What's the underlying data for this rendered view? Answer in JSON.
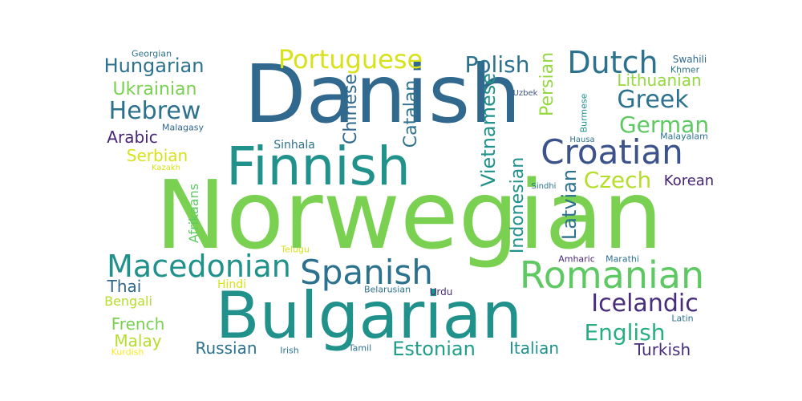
{
  "words": [
    {
      "text": "Norwegian",
      "color": "#7ad151",
      "rotated": false
    },
    {
      "text": "Danish",
      "color": "#31688e",
      "rotated": false
    },
    {
      "text": "Bulgarian",
      "color": "#21918c",
      "rotated": false
    },
    {
      "text": "Finnish",
      "color": "#21918c",
      "rotated": false
    },
    {
      "text": "Romanian",
      "color": "#5ec962",
      "rotated": false
    },
    {
      "text": "Croatian",
      "color": "#3b528b",
      "rotated": false
    },
    {
      "text": "Spanish",
      "color": "#2c728e",
      "rotated": false
    },
    {
      "text": "Macedonian",
      "color": "#21918c",
      "rotated": false
    },
    {
      "text": "Dutch",
      "color": "#2c728e",
      "rotated": false
    },
    {
      "text": "Portuguese",
      "color": "#d8e219",
      "rotated": false
    },
    {
      "text": "Icelandic",
      "color": "#472d7b",
      "rotated": false
    },
    {
      "text": "Hebrew",
      "color": "#2c728e",
      "rotated": false
    },
    {
      "text": "Greek",
      "color": "#2c728e",
      "rotated": false
    },
    {
      "text": "German",
      "color": "#5ec962",
      "rotated": false
    },
    {
      "text": "Polish",
      "color": "#2c728e",
      "rotated": false
    },
    {
      "text": "Czech",
      "color": "#b5de2b",
      "rotated": false
    },
    {
      "text": "English",
      "color": "#28ae80",
      "rotated": false
    },
    {
      "text": "Estonian",
      "color": "#1f9e89",
      "rotated": false
    },
    {
      "text": "Hungarian",
      "color": "#2c728e",
      "rotated": false
    },
    {
      "text": "Ukrainian",
      "color": "#7ad151",
      "rotated": false
    },
    {
      "text": "Lithuanian",
      "color": "#95d840",
      "rotated": false
    },
    {
      "text": "Russian",
      "color": "#2c728e",
      "rotated": false
    },
    {
      "text": "Italian",
      "color": "#21918c",
      "rotated": false
    },
    {
      "text": "Turkish",
      "color": "#472d7b",
      "rotated": false
    },
    {
      "text": "Arabic",
      "color": "#482475",
      "rotated": false
    },
    {
      "text": "Serbian",
      "color": "#d8e219",
      "rotated": false
    },
    {
      "text": "Thai",
      "color": "#31688e",
      "rotated": false
    },
    {
      "text": "French",
      "color": "#7ad151",
      "rotated": false
    },
    {
      "text": "Malay",
      "color": "#b5de2b",
      "rotated": false
    },
    {
      "text": "Korean",
      "color": "#482475",
      "rotated": false
    },
    {
      "text": "Bengali",
      "color": "#b5de2b",
      "rotated": false
    },
    {
      "text": "Sinhala",
      "color": "#2c728e",
      "rotated": false
    },
    {
      "text": "Hindi",
      "color": "#d8e219",
      "rotated": false
    },
    {
      "text": "Swahili",
      "color": "#31688e",
      "rotated": false
    },
    {
      "text": "Khmer",
      "color": "#2c728e",
      "rotated": false
    },
    {
      "text": "Malayalam",
      "color": "#2c728e",
      "rotated": false
    },
    {
      "text": "Georgian",
      "color": "#2c728e",
      "rotated": false
    },
    {
      "text": "Malagasy",
      "color": "#31688e",
      "rotated": false
    },
    {
      "text": "Kazakh",
      "color": "#d8e219",
      "rotated": false
    },
    {
      "text": "Telugu",
      "color": "#d8e219",
      "rotated": false
    },
    {
      "text": "Belarusian",
      "color": "#2c728e",
      "rotated": false
    },
    {
      "text": "Urdu",
      "color": "#472d7b",
      "rotated": false
    },
    {
      "text": "Amharic",
      "color": "#482475",
      "rotated": false
    },
    {
      "text": "Marathi",
      "color": "#2c728e",
      "rotated": false
    },
    {
      "text": "Latin",
      "color": "#2c728e",
      "rotated": false
    },
    {
      "text": "Irish",
      "color": "#2c728e",
      "rotated": false
    },
    {
      "text": "Tamil",
      "color": "#2c728e",
      "rotated": false
    },
    {
      "text": "Kurdish",
      "color": "#fde725",
      "rotated": false
    },
    {
      "text": "Uzbek",
      "color": "#3b528b",
      "rotated": false
    },
    {
      "text": "Hausa",
      "color": "#2c728e",
      "rotated": false
    },
    {
      "text": "Sindhi",
      "color": "#2c728e",
      "rotated": false
    },
    {
      "text": "Chinese",
      "color": "#31688e",
      "rotated": true
    },
    {
      "text": "Catalan",
      "color": "#2c728e",
      "rotated": true
    },
    {
      "text": "Vietnamese",
      "color": "#21918c",
      "rotated": true
    },
    {
      "text": "Persian",
      "color": "#95d840",
      "rotated": true
    },
    {
      "text": "Indonesian",
      "color": "#21918c",
      "rotated": true
    },
    {
      "text": "Latvian",
      "color": "#2c728e",
      "rotated": true
    },
    {
      "text": "Afrikaans",
      "color": "#5ec962",
      "rotated": true
    },
    {
      "text": "Burmese",
      "color": "#21918c",
      "rotated": true
    }
  ]
}
